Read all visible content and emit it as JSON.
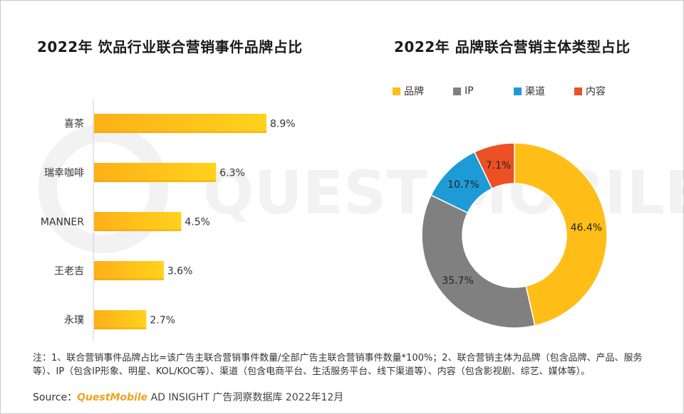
{
  "watermark": {
    "text": "QUEST MOBILE"
  },
  "chart_data": [
    {
      "type": "bar",
      "orientation": "horizontal",
      "title": "2022年 饮品行业联合营销事件品牌占比",
      "categories": [
        "喜茶",
        "瑞幸咖啡",
        "MANNER",
        "王老吉",
        "永璞"
      ],
      "values": [
        8.9,
        6.3,
        4.5,
        3.6,
        2.7
      ],
      "value_labels": [
        "8.9%",
        "6.3%",
        "4.5%",
        "3.6%",
        "2.7%"
      ],
      "unit": "%",
      "xlim": [
        0,
        20
      ],
      "xlabel": "",
      "ylabel": "",
      "grid": false,
      "color": "#ffbe17"
    },
    {
      "type": "pie",
      "donut": true,
      "title": "2022年 品牌联合营销主体类型占比",
      "legend_position": "top",
      "labels": [
        "品牌",
        "IP",
        "渠道",
        "内容"
      ],
      "values": [
        46.4,
        35.7,
        10.7,
        7.1
      ],
      "value_labels": [
        "46.4%",
        "35.7%",
        "10.7%",
        "7.1%"
      ],
      "colors": [
        "#ffbe17",
        "#808080",
        "#1e9bd7",
        "#ec5126"
      ]
    }
  ],
  "footer": {
    "note": "注：1、联合营销事件品牌占比=该广告主联合营销事件数量/全部广告主联合营销事件数量*100%；2、联合营销主体为品牌（包含品牌、产品、服务等）、IP（包含IP形象、明星、KOL/KOC等）、渠道（包含电商平台、生活服务平台、线下渠道等）、内容（包含影视剧、综艺、媒体等）。",
    "source_prefix": "Source：",
    "source_brand": "QuestMobile",
    "source_rest": " AD INSIGHT 广告洞察数据库 2022年12月"
  }
}
